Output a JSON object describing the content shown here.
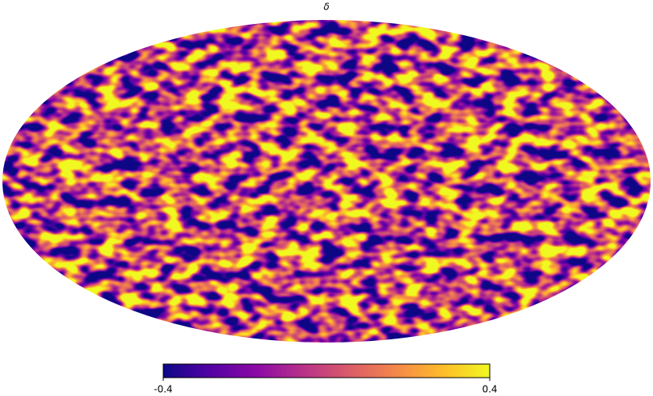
{
  "chart_data": {
    "type": "mollweide",
    "title": "δ",
    "clim": [
      -0.4,
      0.4
    ],
    "cticks": [
      -0.4,
      0.4
    ],
    "colormap": [
      "#0d0887",
      "#5302a3",
      "#8b0aa5",
      "#b83289",
      "#db5c68",
      "#f48849",
      "#febc2a",
      "#f0f921"
    ]
  }
}
